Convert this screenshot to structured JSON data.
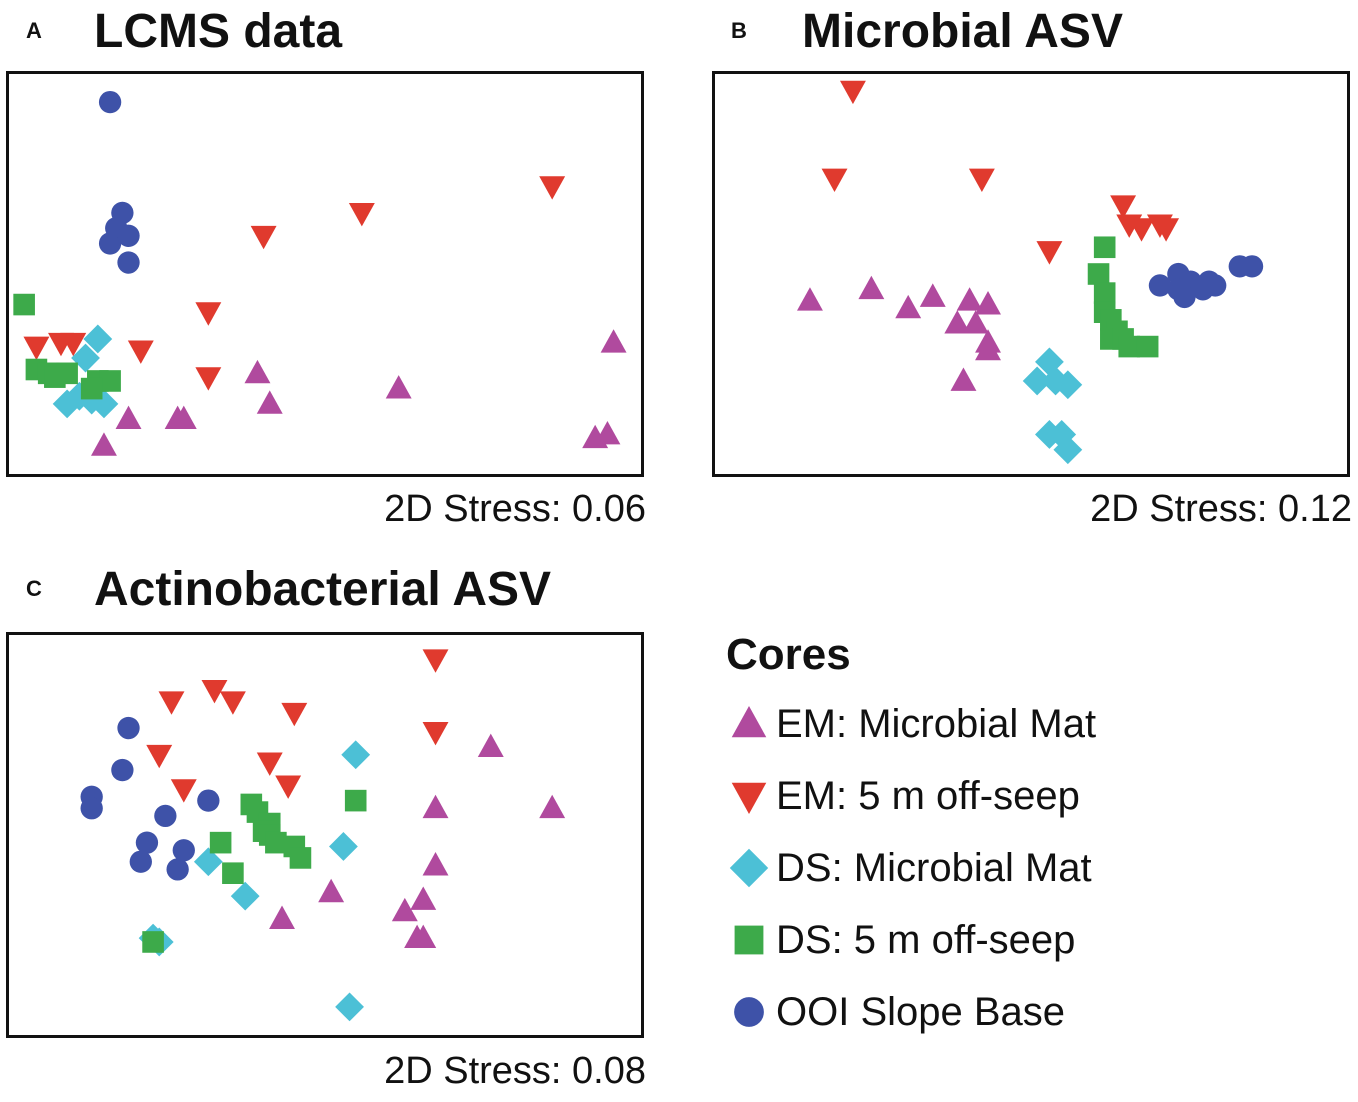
{
  "colors": {
    "em_mat": "#B04A9E",
    "em_off": "#E03A2E",
    "ds_mat": "#4CC0D6",
    "ds_off": "#3DAA4A",
    "ooi": "#3E52A8"
  },
  "legend": {
    "title": "Cores",
    "items": [
      {
        "label": "EM: Microbial Mat",
        "shape": "triangle-up",
        "group": "em_mat"
      },
      {
        "label": "EM: 5 m off-seep",
        "shape": "triangle-down",
        "group": "em_off"
      },
      {
        "label": "DS: Microbial Mat",
        "shape": "diamond",
        "group": "ds_mat"
      },
      {
        "label": "DS: 5 m off-seep",
        "shape": "square",
        "group": "ds_off"
      },
      {
        "label": "OOI Slope Base",
        "shape": "circle",
        "group": "ooi"
      }
    ]
  },
  "chart_data": [
    {
      "panel": "A",
      "type": "scatter",
      "title": "LCMS data",
      "stress": "2D Stress: 0.06",
      "xlim": [
        0,
        100
      ],
      "ylim": [
        0,
        100
      ],
      "series": [
        {
          "name": "EM: Microbial Mat",
          "group": "em_mat",
          "shape": "triangle-up",
          "points": [
            [
              97,
              32
            ],
            [
              94,
              7
            ],
            [
              96,
              8
            ],
            [
              62,
              20
            ],
            [
              39,
              24
            ],
            [
              41,
              16
            ],
            [
              26,
              12
            ],
            [
              27,
              12
            ],
            [
              18,
              12
            ],
            [
              14,
              5
            ]
          ]
        },
        {
          "name": "EM: 5 m off-seep",
          "group": "em_off",
          "shape": "triangle-down",
          "points": [
            [
              87,
              73
            ],
            [
              56,
              66
            ],
            [
              40,
              60
            ],
            [
              31,
              40
            ],
            [
              20,
              30
            ],
            [
              31,
              23
            ],
            [
              3,
              31
            ],
            [
              7,
              32
            ],
            [
              9,
              32
            ]
          ]
        },
        {
          "name": "DS: Microbial Mat",
          "group": "ds_mat",
          "shape": "diamond",
          "points": [
            [
              13,
              33
            ],
            [
              11,
              28
            ],
            [
              8,
              16
            ],
            [
              10,
              18
            ],
            [
              12,
              17
            ],
            [
              14,
              16
            ]
          ]
        },
        {
          "name": "DS: 5 m off-seep",
          "group": "ds_off",
          "shape": "square",
          "points": [
            [
              1,
              42
            ],
            [
              3,
              25
            ],
            [
              5,
              24
            ],
            [
              6,
              23
            ],
            [
              8,
              24
            ],
            [
              13,
              22
            ],
            [
              15,
              22
            ],
            [
              12,
              20
            ]
          ]
        },
        {
          "name": "OOI Slope Base",
          "group": "ooi",
          "shape": "circle",
          "points": [
            [
              15,
              95
            ],
            [
              17,
              66
            ],
            [
              16,
              62
            ],
            [
              15,
              58
            ],
            [
              18,
              60
            ],
            [
              18,
              53
            ]
          ]
        }
      ]
    },
    {
      "panel": "B",
      "type": "scatter",
      "title": "Microbial ASV",
      "stress": "2D Stress: 0.12",
      "xlim": [
        0,
        100
      ],
      "ylim": [
        0,
        100
      ],
      "series": [
        {
          "name": "EM: Microbial Mat",
          "group": "em_mat",
          "shape": "triangle-up",
          "points": [
            [
              14,
              43
            ],
            [
              24,
              46
            ],
            [
              30,
              41
            ],
            [
              34,
              44
            ],
            [
              40,
              43
            ],
            [
              43,
              42
            ],
            [
              41,
              37
            ],
            [
              38,
              37
            ],
            [
              43,
              32
            ],
            [
              43,
              30
            ],
            [
              39,
              22
            ]
          ]
        },
        {
          "name": "EM: 5 m off-seep",
          "group": "em_off",
          "shape": "triangle-down",
          "points": [
            [
              21,
              98
            ],
            [
              18,
              75
            ],
            [
              42,
              75
            ],
            [
              53,
              56
            ],
            [
              65,
              68
            ],
            [
              66,
              63
            ],
            [
              68,
              62
            ],
            [
              71,
              63
            ],
            [
              72,
              62
            ]
          ]
        },
        {
          "name": "DS: Microbial Mat",
          "group": "ds_mat",
          "shape": "diamond",
          "points": [
            [
              53,
              27
            ],
            [
              51,
              22
            ],
            [
              54,
              22
            ],
            [
              56,
              21
            ],
            [
              53,
              8
            ],
            [
              55,
              8
            ],
            [
              56,
              4
            ]
          ]
        },
        {
          "name": "DS: 5 m off-seep",
          "group": "ds_off",
          "shape": "square",
          "points": [
            [
              62,
              57
            ],
            [
              61,
              50
            ],
            [
              62,
              45
            ],
            [
              62,
              40
            ],
            [
              63,
              38
            ],
            [
              64,
              35
            ],
            [
              63,
              33
            ],
            [
              65,
              33
            ],
            [
              66,
              31
            ],
            [
              69,
              31
            ]
          ]
        },
        {
          "name": "OOI Slope Base",
          "group": "ooi",
          "shape": "circle",
          "points": [
            [
              71,
              47
            ],
            [
              74,
              50
            ],
            [
              74,
              46
            ],
            [
              76,
              48
            ],
            [
              78,
              46
            ],
            [
              75,
              44
            ],
            [
              79,
              48
            ],
            [
              80,
              47
            ],
            [
              84,
              52
            ],
            [
              86,
              52
            ]
          ]
        }
      ]
    },
    {
      "panel": "C",
      "type": "scatter",
      "title": "Actinobacterial ASV",
      "stress": "2D Stress: 0.08",
      "xlim": [
        0,
        100
      ],
      "ylim": [
        0,
        100
      ],
      "series": [
        {
          "name": "EM: Microbial Mat",
          "group": "em_mat",
          "shape": "triangle-up",
          "points": [
            [
              77,
              73
            ],
            [
              87,
              57
            ],
            [
              68,
              57
            ],
            [
              68,
              42
            ],
            [
              66,
              33
            ],
            [
              63,
              30
            ],
            [
              65,
              23
            ],
            [
              66,
              23
            ],
            [
              51,
              35
            ],
            [
              43,
              28
            ]
          ]
        },
        {
          "name": "EM: 5 m off-seep",
          "group": "em_off",
          "shape": "triangle-down",
          "points": [
            [
              68,
              96
            ],
            [
              68,
              77
            ],
            [
              25,
              85
            ],
            [
              32,
              88
            ],
            [
              35,
              85
            ],
            [
              45,
              82
            ],
            [
              23,
              71
            ],
            [
              41,
              69
            ],
            [
              27,
              62
            ],
            [
              44,
              63
            ]
          ]
        },
        {
          "name": "DS: Microbial Mat",
          "group": "ds_mat",
          "shape": "diamond",
          "points": [
            [
              55,
              71
            ],
            [
              53,
              47
            ],
            [
              31,
              43
            ],
            [
              37,
              34
            ],
            [
              22,
              23
            ],
            [
              23,
              22
            ],
            [
              54,
              5
            ]
          ]
        },
        {
          "name": "DS: 5 m off-seep",
          "group": "ds_off",
          "shape": "square",
          "points": [
            [
              38,
              58
            ],
            [
              39,
              56
            ],
            [
              41,
              53
            ],
            [
              40,
              51
            ],
            [
              41,
              50
            ],
            [
              42,
              48
            ],
            [
              45,
              47
            ],
            [
              46,
              44
            ],
            [
              33,
              48
            ],
            [
              35,
              40
            ],
            [
              55,
              59
            ],
            [
              22,
              22
            ]
          ]
        },
        {
          "name": "OOI Slope Base",
          "group": "ooi",
          "shape": "circle",
          "points": [
            [
              18,
              78
            ],
            [
              17,
              67
            ],
            [
              12,
              60
            ],
            [
              12,
              57
            ],
            [
              24,
              55
            ],
            [
              31,
              59
            ],
            [
              21,
              48
            ],
            [
              27,
              46
            ],
            [
              26,
              41
            ],
            [
              20,
              43
            ]
          ]
        }
      ]
    }
  ]
}
